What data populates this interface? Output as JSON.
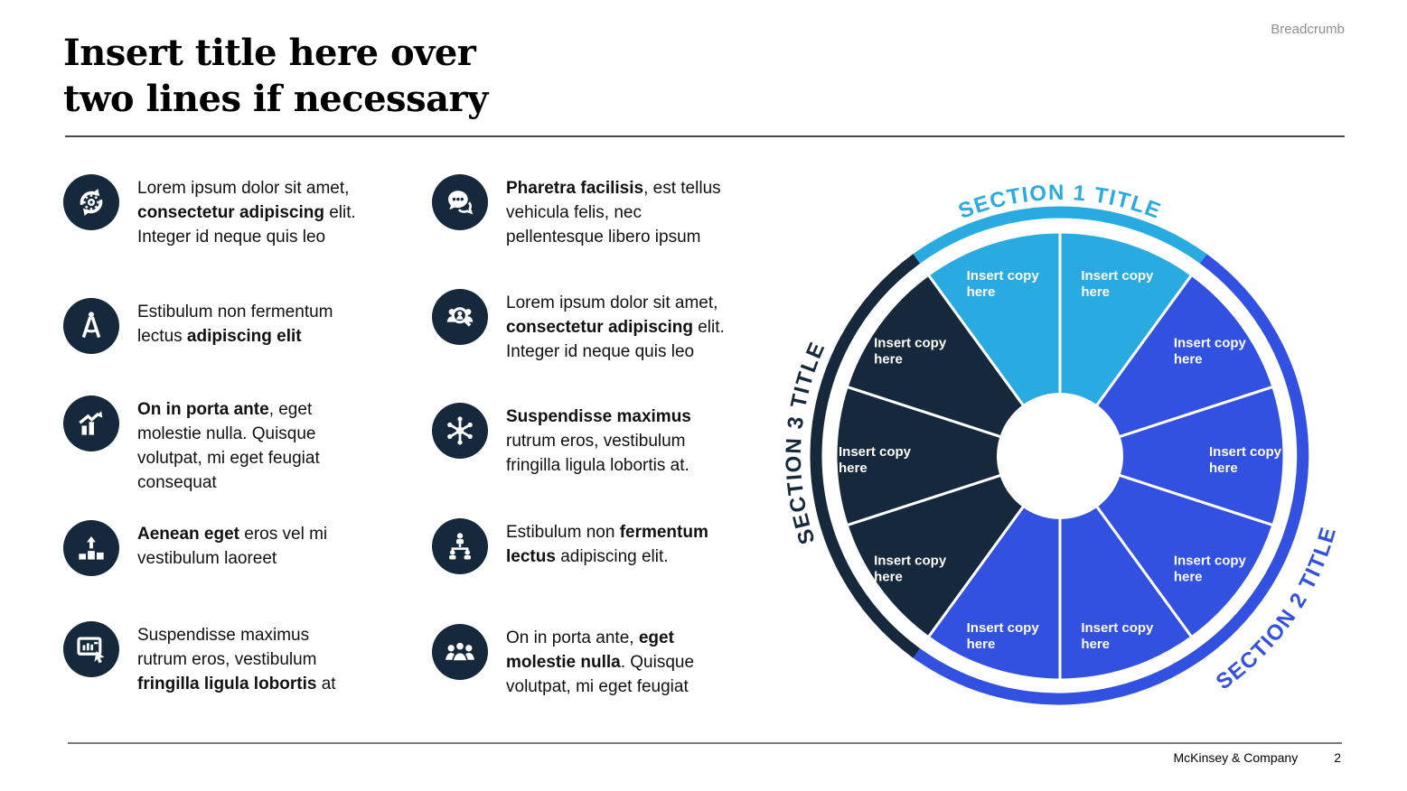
{
  "slide": {
    "breadcrumb": "Breadcrumb",
    "title_line1": "Insert title here over",
    "title_line2": "two lines if necessary",
    "footer": {
      "company": "McKinsey & Company",
      "page_number": "2"
    }
  },
  "items": {
    "left": [
      {
        "icon": "sync-gear-icon",
        "segments": [
          {
            "t": "Lorem ipsum dolor sit amet,\n"
          },
          {
            "t": "consectetur adipiscing",
            "b": true
          },
          {
            "t": " elit.\nInteger id neque quis leo"
          }
        ]
      },
      {
        "icon": "compass-icon",
        "segments": [
          {
            "t": "Estibulum non fermentum\nlectus "
          },
          {
            "t": "adipiscing elit",
            "b": true
          }
        ]
      },
      {
        "icon": "growth-chart-icon",
        "segments": [
          {
            "t": "On in porta ante",
            "b": true
          },
          {
            "t": ", eget\nmolestie nulla. Quisque\nvolutpat, mi eget feugiat\nconsequat"
          }
        ]
      },
      {
        "icon": "bar-rank-icon",
        "segments": [
          {
            "t": "Aenean eget",
            "b": true
          },
          {
            "t": " eros vel mi\nvestibulum laoreet"
          }
        ]
      },
      {
        "icon": "screen-pointer-icon",
        "segments": [
          {
            "t": "Suspendisse maximus\nrutrum eros, vestibulum\n"
          },
          {
            "t": "fringilla ligula lobortis",
            "b": true
          },
          {
            "t": " at"
          }
        ]
      }
    ],
    "right": [
      {
        "icon": "chat-bubbles-icon",
        "segments": [
          {
            "t": "Pharetra facilisis",
            "b": true
          },
          {
            "t": ", est tellus\nvehicula felis, nec\npellentesque libero ipsum"
          }
        ]
      },
      {
        "icon": "people-search-icon",
        "segments": [
          {
            "t": "Lorem ipsum dolor sit amet,\n"
          },
          {
            "t": "consectetur adipiscing",
            "b": true
          },
          {
            "t": " elit.\nInteger id neque quis leo"
          }
        ]
      },
      {
        "icon": "hub-network-icon",
        "segments": [
          {
            "t": "Suspendisse maximus",
            "b": true
          },
          {
            "t": "\nrutrum eros, vestibulum\nfringilla ligula lobortis at."
          }
        ]
      },
      {
        "icon": "org-hierarchy-icon",
        "segments": [
          {
            "t": "Estibulum non "
          },
          {
            "t": "fermentum\nlectus",
            "b": true
          },
          {
            "t": " adipiscing elit."
          }
        ]
      },
      {
        "icon": "team-icon",
        "segments": [
          {
            "t": "On in porta ante, "
          },
          {
            "t": "eget\nmolestie nulla",
            "b": true
          },
          {
            "t": ". Quisque\nvolutpat, mi eget feugiat"
          }
        ]
      }
    ]
  },
  "wheel": {
    "wedge_label_line1": "Insert copy",
    "wedge_label_line2": "here",
    "sections": [
      {
        "title": "SECTION 1 TITLE",
        "color": "#29ABE2",
        "start": 126,
        "end": 54,
        "wedges": 2
      },
      {
        "title": "SECTION 2 TITLE",
        "color": "#3351E1",
        "start": 54,
        "end": -126,
        "wedges": 5
      },
      {
        "title": "SECTION 3 TITLE",
        "color": "#15283C",
        "start": 234,
        "end": 126,
        "wedges": 3
      }
    ]
  },
  "colors": {
    "dark_navy": "#15283C",
    "royal_blue": "#3351E1",
    "light_blue": "#29ABE2"
  }
}
